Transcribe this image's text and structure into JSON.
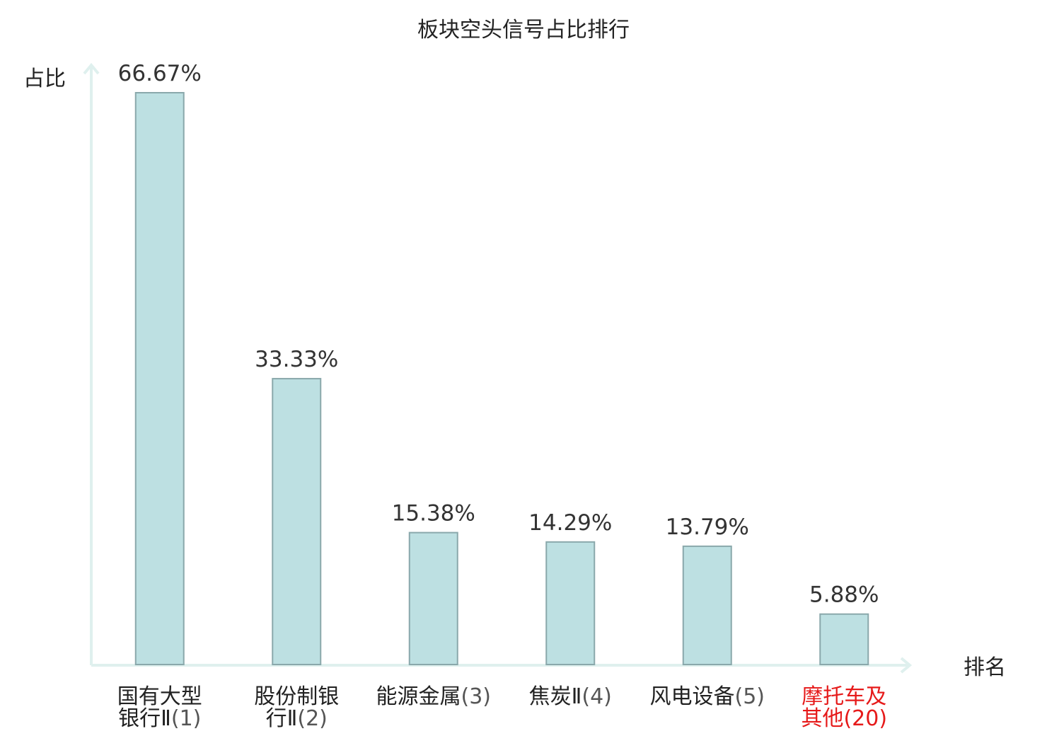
{
  "chart_data": {
    "type": "bar",
    "title": "板块空头信号占比排行",
    "ylabel": "占比",
    "xlabel": "排名",
    "ylim": [
      0,
      70
    ],
    "grid": false,
    "bar_color": "#bde0e2",
    "highlight_color": "#e61a1a",
    "categories": [
      {
        "name_lines": [
          "国有大型",
          "银行Ⅱ"
        ],
        "rank": "(1)",
        "value": 66.67,
        "value_label": "66.67%",
        "highlight": false
      },
      {
        "name_lines": [
          "股份制银",
          "行Ⅱ"
        ],
        "rank": "(2)",
        "value": 33.33,
        "value_label": "33.33%",
        "highlight": false
      },
      {
        "name_lines": [
          "能源金属"
        ],
        "rank": "(3)",
        "value": 15.38,
        "value_label": "15.38%",
        "highlight": false
      },
      {
        "name_lines": [
          "焦炭Ⅱ"
        ],
        "rank": "(4)",
        "value": 14.29,
        "value_label": "14.29%",
        "highlight": false
      },
      {
        "name_lines": [
          "风电设备"
        ],
        "rank": "(5)",
        "value": 13.79,
        "value_label": "13.79%",
        "highlight": false
      },
      {
        "name_lines": [
          "摩托车及",
          "其他"
        ],
        "rank": "(20)",
        "value": 5.88,
        "value_label": "5.88%",
        "highlight": true
      }
    ]
  }
}
